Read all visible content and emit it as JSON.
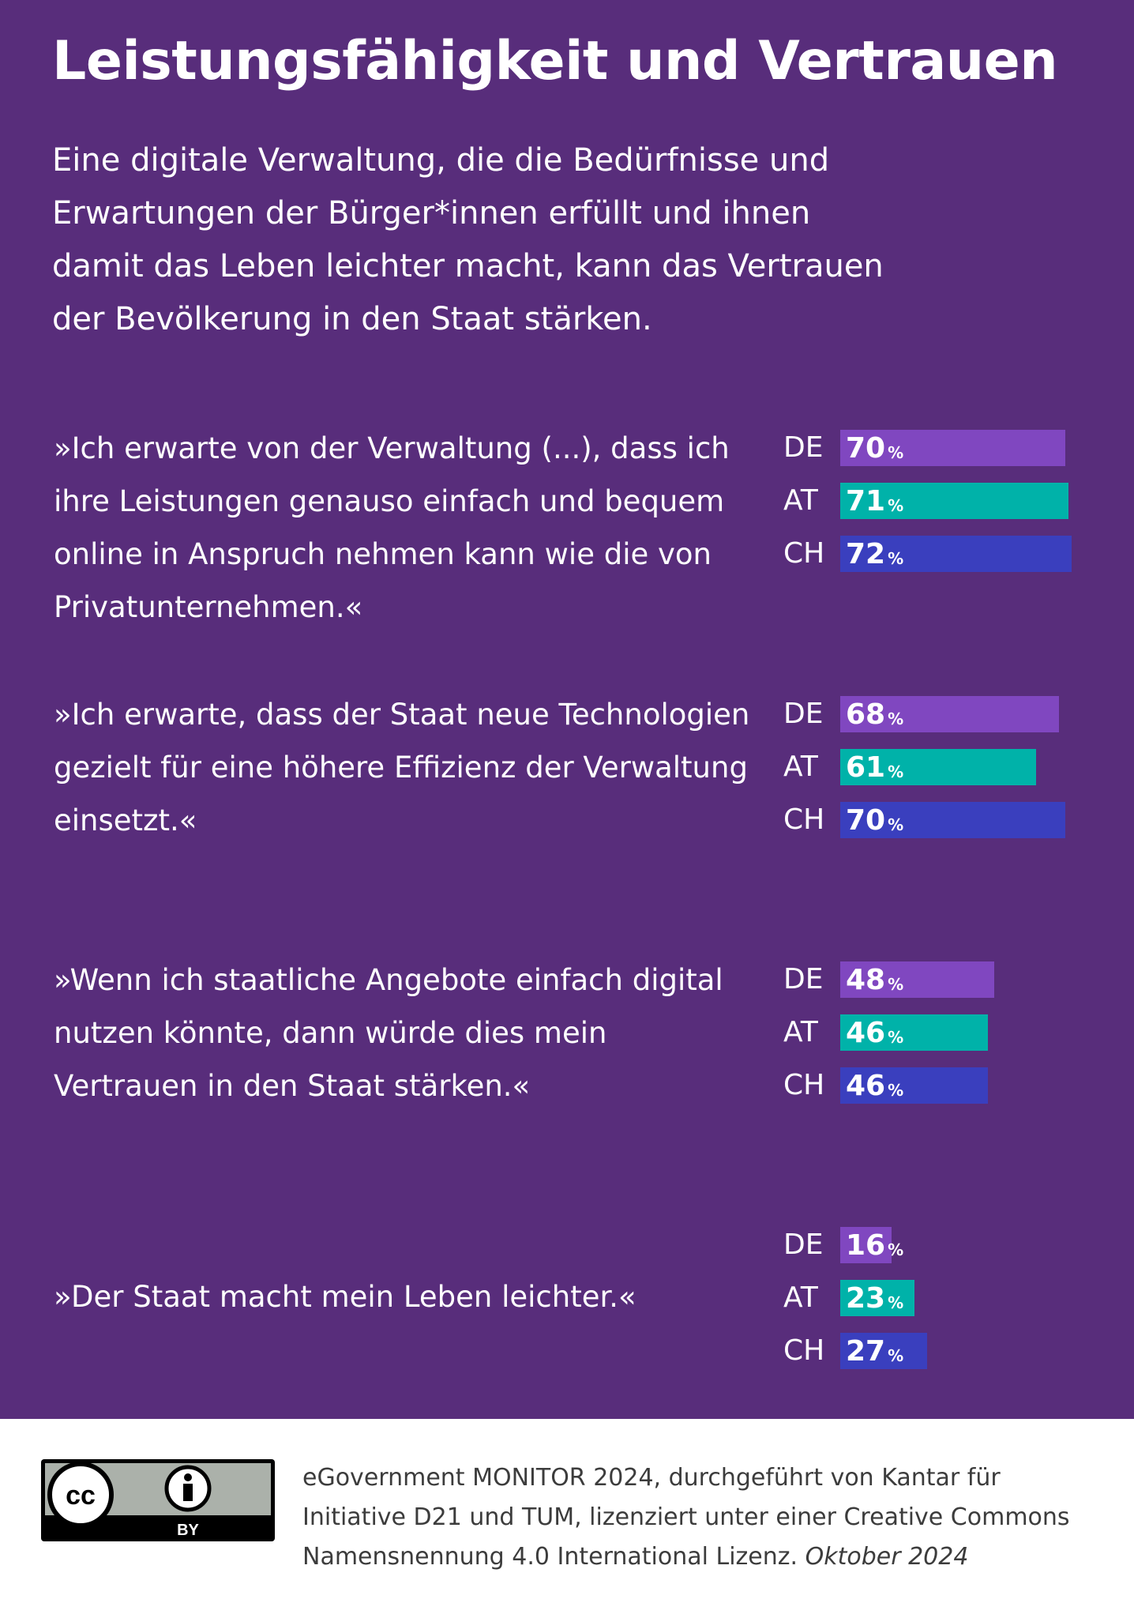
{
  "title": "Leistungsfähigkeit und Vertrauen",
  "intro": "Eine digitale Verwaltung, die die Bedürfnisse und Erwartungen der Bürger*innen erfüllt und ihnen damit das Leben leichter macht, kann das Vertrauen der Bevölkerung in den Staat stärken.",
  "colors": {
    "background": "#582d7b",
    "DE": "#8047c0",
    "AT": "#00b2a9",
    "CH": "#3a3fbe"
  },
  "percent_symbol": "%",
  "countries": [
    "DE",
    "AT",
    "CH"
  ],
  "chart_data": {
    "type": "bar",
    "orientation": "horizontal",
    "unit": "%",
    "series": [
      {
        "name": "DE",
        "values": [
          70,
          68,
          48,
          16
        ]
      },
      {
        "name": "AT",
        "values": [
          71,
          61,
          46,
          23
        ]
      },
      {
        "name": "CH",
        "values": [
          72,
          70,
          46,
          27
        ]
      }
    ],
    "categories": [
      "»Ich erwarte von der Verwaltung (...), dass ich ihre Leistungen genauso einfach und bequem online in Anspruch nehmen kann wie die von Privatunternehmen.«",
      "»Ich erwarte, dass der Staat neue Technologien gezielt für eine höhere Effizienz der Verwaltung einsetzt.«",
      "»Wenn ich staatliche Angebote einfach digital nutzen könnte, dann würde dies mein Vertrauen in den Staat stärken.«",
      "»Der Staat macht mein Leben leichter.«"
    ],
    "grid": false,
    "legend": "none"
  },
  "footer": {
    "badge_label": "BY",
    "source": "eGovernment MONITOR 2024, durchgeführt von Kantar für Initiative D21 und TUM, lizenziert unter einer Creative Commons Namensnennung 4.0 International Lizenz.",
    "date": "Oktober 2024"
  }
}
